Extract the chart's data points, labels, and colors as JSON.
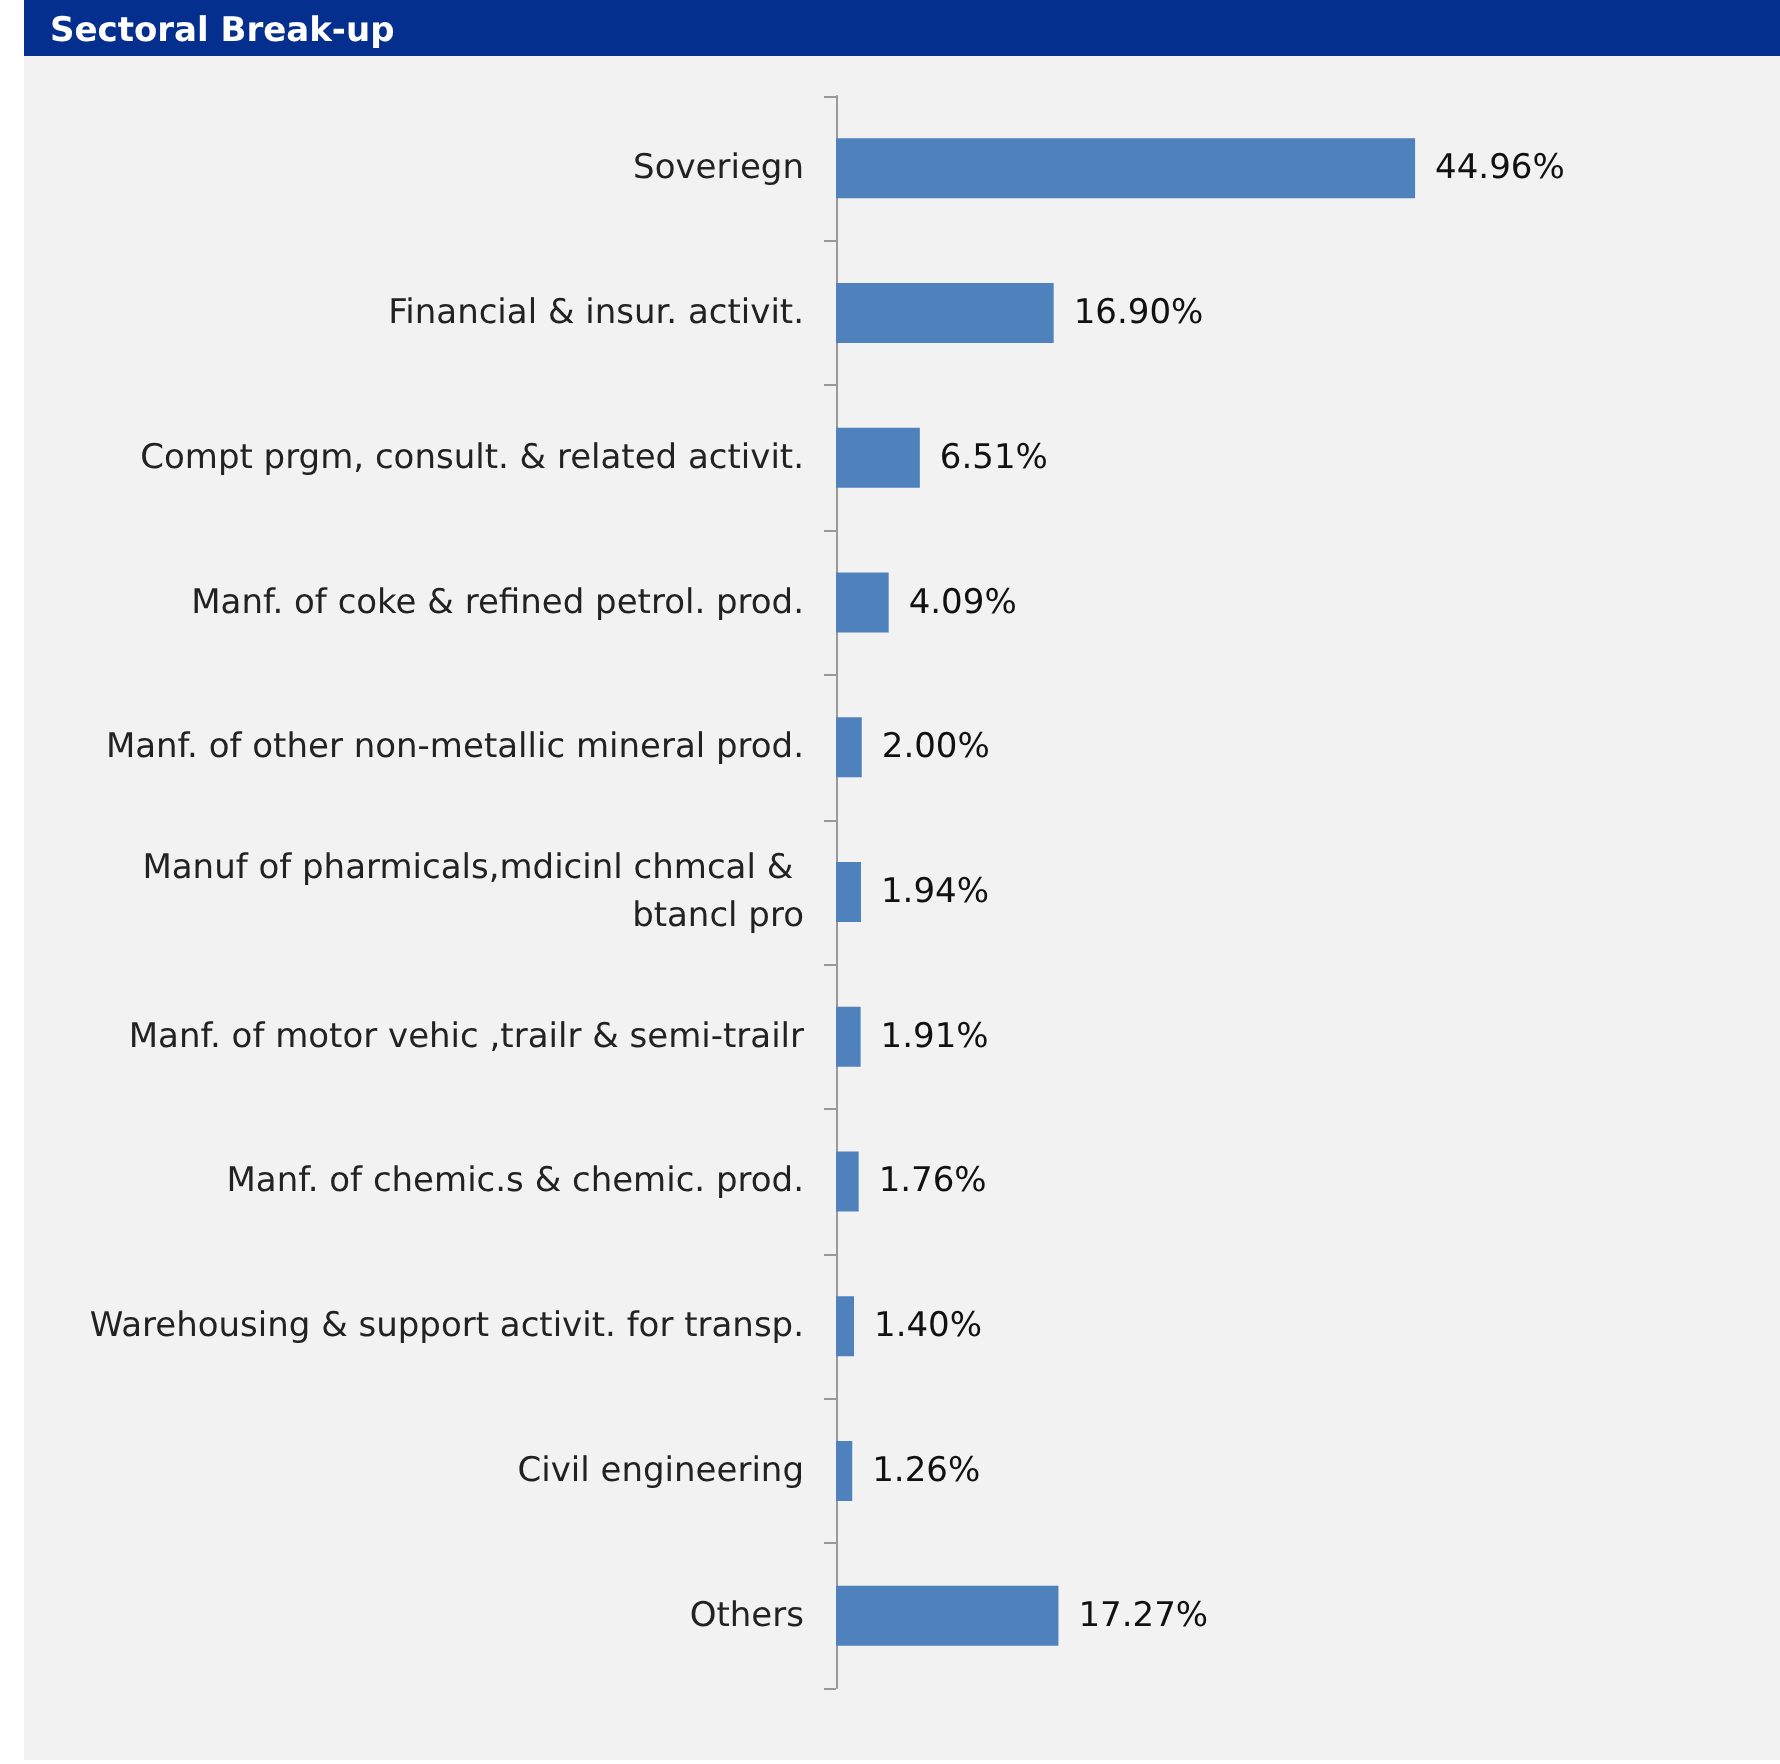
{
  "chart_data": {
    "type": "bar",
    "title": "Sectoral Break-up",
    "orientation": "horizontal",
    "categories": [
      "Soveriegn",
      "Financial & insur. activit.",
      "Compt prgm, consult. & related activit.",
      "Manf. of coke & refined petrol. prod.",
      "Manf. of other non-metallic mineral prod.",
      "Manuf of pharmicals,mdicinl chmcal & btancl pro",
      "Manf. of motor vehic ,trailr & semi-trailr",
      "Manf. of chemic.s & chemic. prod.",
      "Warehousing & support activit. for transp.",
      "Civil engineering",
      "Others"
    ],
    "series": [
      {
        "color": "#4f81bd",
        "values": [
          44.96,
          16.9,
          6.51,
          4.09,
          2.0,
          1.94,
          1.91,
          1.76,
          1.4,
          1.26,
          17.27
        ],
        "value_labels": [
          "44.96%",
          "16.90%",
          "6.51%",
          "4.09%",
          "2.00%",
          "1.94%",
          "1.91%",
          "1.76%",
          "1.40%",
          "1.26%",
          "17.27%"
        ]
      }
    ],
    "tick_labels": "y"
  }
}
